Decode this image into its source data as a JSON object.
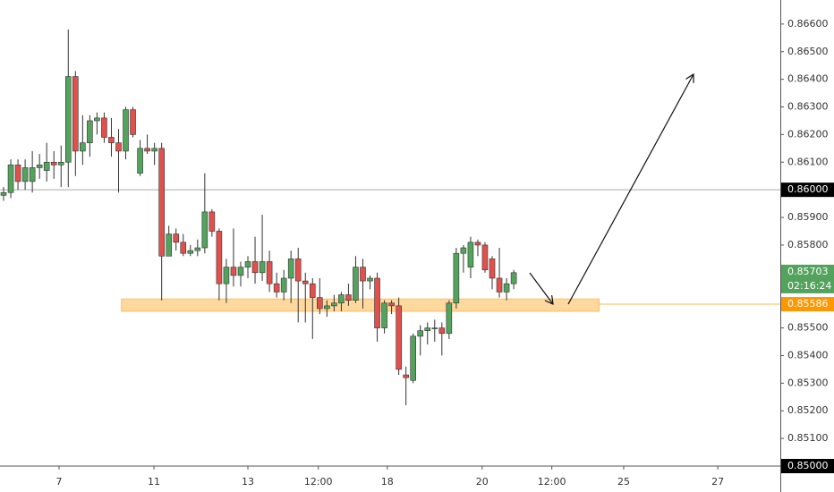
{
  "chart_data": {
    "type": "candlestick",
    "open": [
      0.8598,
      0.8599,
      0.8609,
      0.8603,
      0.8603,
      0.8608,
      0.8607,
      0.861,
      0.8609,
      0.861,
      0.8641,
      0.8614,
      0.8617,
      0.8625,
      0.8626,
      0.8619,
      0.8617,
      0.8614,
      0.8629,
      0.8606,
      0.8615,
      0.8614,
      0.8615,
      0.8576,
      0.8584,
      0.8581,
      0.8577,
      0.8578,
      0.8579,
      0.8592,
      0.8585,
      0.8566,
      0.8572,
      0.8569,
      0.8572,
      0.8574,
      0.857,
      0.8574,
      0.8566,
      0.8563,
      0.8568,
      0.8575,
      0.8567,
      0.8566,
      0.8561,
      0.8557,
      0.8558,
      0.8559,
      0.8562,
      0.856,
      0.8572,
      0.8567,
      0.8568,
      0.855,
      0.8559,
      0.8558,
      0.8533,
      0.8531,
      0.8547,
      0.8549,
      0.855,
      0.855,
      0.8548,
      0.8559,
      0.8577,
      0.8572,
      0.8581,
      0.858,
      0.8575,
      0.8568,
      0.8563,
      0.8566
    ],
    "high": [
      0.8601,
      0.8611,
      0.8611,
      0.8611,
      0.8614,
      0.8613,
      0.8617,
      0.8614,
      0.8616,
      0.8658,
      0.8643,
      0.8627,
      0.8627,
      0.8628,
      0.8628,
      0.8626,
      0.8622,
      0.863,
      0.863,
      0.8618,
      0.862,
      0.8617,
      0.8617,
      0.8587,
      0.8586,
      0.8584,
      0.858,
      0.8582,
      0.8606,
      0.8593,
      0.8586,
      0.8575,
      0.8586,
      0.8574,
      0.8576,
      0.8583,
      0.8591,
      0.8578,
      0.857,
      0.8571,
      0.8578,
      0.8579,
      0.857,
      0.8568,
      0.8568,
      0.856,
      0.8562,
      0.8563,
      0.8566,
      0.8576,
      0.8575,
      0.8569,
      0.857,
      0.856,
      0.856,
      0.8561,
      0.8536,
      0.8548,
      0.8551,
      0.8552,
      0.8553,
      0.8552,
      0.856,
      0.8579,
      0.858,
      0.8583,
      0.8582,
      0.8581,
      0.8576,
      0.8579,
      0.8568,
      0.8571
    ],
    "low": [
      0.8596,
      0.8597,
      0.86,
      0.86,
      0.8599,
      0.8604,
      0.8603,
      0.8604,
      0.8601,
      0.8601,
      0.8605,
      0.8609,
      0.8612,
      0.862,
      0.8617,
      0.8612,
      0.8599,
      0.8611,
      0.8619,
      0.8605,
      0.8613,
      0.8609,
      0.856,
      0.8576,
      0.8578,
      0.8576,
      0.8576,
      0.8576,
      0.8577,
      0.8583,
      0.856,
      0.8559,
      0.8565,
      0.8565,
      0.8568,
      0.8566,
      0.8567,
      0.8563,
      0.8561,
      0.856,
      0.8559,
      0.8552,
      0.8552,
      0.8546,
      0.8555,
      0.8554,
      0.8556,
      0.8556,
      0.8558,
      0.8559,
      0.8557,
      0.8564,
      0.8545,
      0.8548,
      0.8555,
      0.8533,
      0.8522,
      0.853,
      0.854,
      0.8544,
      0.8545,
      0.854,
      0.8546,
      0.8557,
      0.857,
      0.8568,
      0.8576,
      0.857,
      0.8564,
      0.8561,
      0.856,
      0.8564
    ],
    "close": [
      0.8599,
      0.8609,
      0.8603,
      0.8608,
      0.8608,
      0.8609,
      0.861,
      0.8609,
      0.861,
      0.8641,
      0.8614,
      0.8617,
      0.8625,
      0.8626,
      0.8619,
      0.8617,
      0.8614,
      0.8629,
      0.862,
      0.8615,
      0.8614,
      0.8615,
      0.8576,
      0.8584,
      0.8581,
      0.8577,
      0.8578,
      0.8579,
      0.8592,
      0.8585,
      0.8566,
      0.8572,
      0.8569,
      0.8572,
      0.8574,
      0.857,
      0.8574,
      0.8566,
      0.8563,
      0.8568,
      0.8575,
      0.8567,
      0.8566,
      0.8561,
      0.8557,
      0.8558,
      0.8559,
      0.8562,
      0.856,
      0.8572,
      0.8567,
      0.8568,
      0.855,
      0.8559,
      0.8558,
      0.8535,
      0.8532,
      0.8547,
      0.8549,
      0.855,
      0.855,
      0.8548,
      0.8559,
      0.8577,
      0.8579,
      0.8581,
      0.858,
      0.8571,
      0.8568,
      0.8563,
      0.8566,
      0.857
    ],
    "up_color": "#53a35d",
    "down_color": "#e0504c",
    "xlim": [
      -0.5,
      108.1
    ],
    "xticks": [
      {
        "value": 7.72,
        "label": "7"
      },
      {
        "value": 20.92,
        "label": "11"
      },
      {
        "value": 34.0,
        "label": "13"
      },
      {
        "value": 43.8,
        "label": "12:00"
      },
      {
        "value": 53.4,
        "label": "18"
      },
      {
        "value": 66.6,
        "label": "20"
      },
      {
        "value": 76.3,
        "label": "12:00"
      },
      {
        "value": 86.3,
        "label": "25"
      },
      {
        "value": 99.4,
        "label": "27"
      }
    ],
    "ylim": [
      0.85,
      0.86687
    ],
    "yticks": [
      {
        "value": 0.851,
        "label": "0.85100"
      },
      {
        "value": 0.852,
        "label": "0.85200"
      },
      {
        "value": 0.853,
        "label": "0.85300"
      },
      {
        "value": 0.854,
        "label": "0.85400"
      },
      {
        "value": 0.855,
        "label": "0.85500"
      },
      {
        "value": 0.858,
        "label": "0.85800"
      },
      {
        "value": 0.859,
        "label": "0.85900"
      },
      {
        "value": 0.861,
        "label": "0.86100"
      },
      {
        "value": 0.862,
        "label": "0.86200"
      },
      {
        "value": 0.863,
        "label": "0.86300"
      },
      {
        "value": 0.864,
        "label": "0.86400"
      },
      {
        "value": 0.865,
        "label": "0.86500"
      },
      {
        "value": 0.866,
        "label": "0.86600"
      }
    ],
    "levels": [
      {
        "value": 0.86,
        "label": "0.86000",
        "color": "#000000"
      },
      {
        "value": 0.85,
        "label": "0.85000",
        "color": "#000000"
      }
    ],
    "current_price": {
      "value": 0.85703,
      "label": "0.85703",
      "countdown": "02:16:24",
      "color": "#53a35d"
    },
    "zone": {
      "value": 0.85586,
      "label": "0.85586",
      "low": 0.8556,
      "high": 0.85605,
      "x": [
        16.4,
        82.9
      ],
      "color": "#ff9800"
    }
  }
}
